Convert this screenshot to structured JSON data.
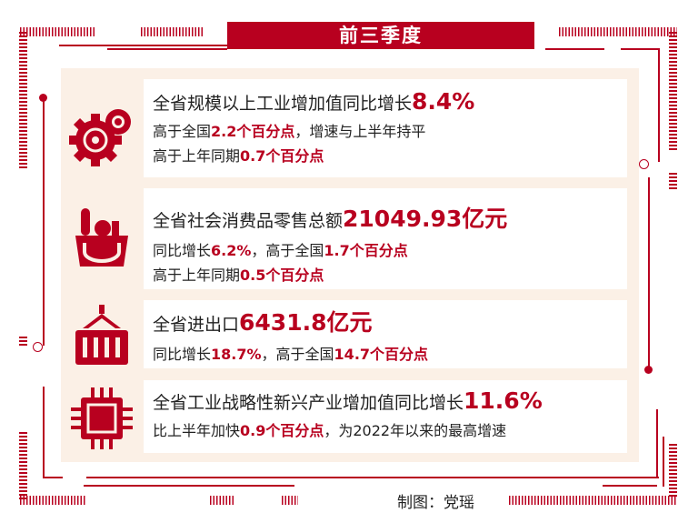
{
  "title": "前三季度",
  "colors": {
    "accent": "#b8001f",
    "panel": "#fbf0e6"
  },
  "cards": [
    {
      "icon": "gears-icon",
      "lines": [
        [
          {
            "t": "全省规模以上工业增加值同比增长"
          },
          {
            "t": "8.4%",
            "hl": true
          }
        ],
        [
          {
            "t": "高于全国"
          },
          {
            "t": "2.2个百分点",
            "hl": true
          },
          {
            "t": "，增速与上半年持平"
          }
        ],
        [
          {
            "t": "高于上年同期"
          },
          {
            "t": "0.7个百分点",
            "hl": true
          }
        ]
      ]
    },
    {
      "icon": "shopping-basket-icon",
      "lines": [
        [
          {
            "t": "全省社会消费品零售总额"
          },
          {
            "t": "21049.93亿元",
            "hl": true
          }
        ],
        [
          {
            "t": "同比增长"
          },
          {
            "t": "6.2%",
            "hl": true
          },
          {
            "t": "，高于全国"
          },
          {
            "t": "1.7个百分点",
            "hl": true
          }
        ],
        [
          {
            "t": "高于上年同期"
          },
          {
            "t": "0.5个百分点",
            "hl": true
          }
        ]
      ]
    },
    {
      "icon": "shipping-container-icon",
      "lines": [
        [
          {
            "t": "全省进出口"
          },
          {
            "t": "6431.8亿元",
            "hl": true
          }
        ],
        [
          {
            "t": "同比增长"
          },
          {
            "t": "18.7%",
            "hl": true
          },
          {
            "t": "，高于全国"
          },
          {
            "t": "14.7个百分点",
            "hl": true
          }
        ]
      ]
    },
    {
      "icon": "chip-icon",
      "lines": [
        [
          {
            "t": "全省工业战略性新兴产业增加值同比增长"
          },
          {
            "t": "11.6%",
            "hl": true
          }
        ],
        [
          {
            "t": "比上半年加快"
          },
          {
            "t": "0.9个百分点",
            "hl": true
          },
          {
            "t": "，为2022年以来的最高增速"
          }
        ]
      ]
    }
  ],
  "credit": "制图：党瑶"
}
